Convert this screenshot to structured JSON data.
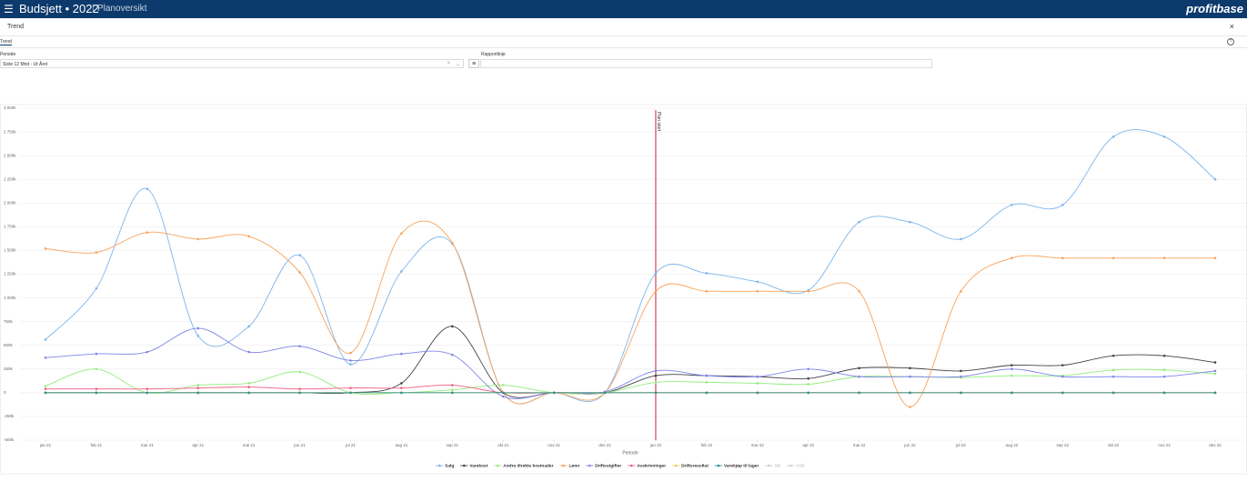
{
  "header": {
    "title": "Budsjett • 2022",
    "subtitle": "Planoversikt",
    "logo": "profitbase"
  },
  "panel": {
    "title": "Trend",
    "tab": "Trend"
  },
  "filters": {
    "period_label": "Periode",
    "period_value": "Siste 12 Mnd - Ut Året",
    "report_label": "Rapportlinje"
  },
  "chart_data": {
    "type": "line",
    "smooth": true,
    "markers": true,
    "x_label": "Periode",
    "categories": [
      "jan 21",
      "feb 21",
      "mar 21",
      "apr 21",
      "mai 21",
      "jun 21",
      "jul 21",
      "aug 21",
      "sep 21",
      "okt 21",
      "nov 21",
      "des 21",
      "jan 22",
      "feb 22",
      "mar 22",
      "apr 22",
      "mai 22",
      "jun 22",
      "jul 22",
      "aug 22",
      "sep 22",
      "okt 22",
      "nov 22",
      "des 22"
    ],
    "ylim": [
      -500000,
      3000000
    ],
    "yticks": [
      {
        "value": -500000,
        "label": "-500k"
      },
      {
        "value": -250000,
        "label": "-250k"
      },
      0,
      {
        "value": 250000,
        "label": "250k"
      },
      {
        "value": 500000,
        "label": "500k"
      },
      {
        "value": 750000,
        "label": "750k"
      },
      {
        "value": 1000000,
        "label": "1 000k"
      },
      {
        "value": 1250000,
        "label": "1 250k"
      },
      {
        "value": 1500000,
        "label": "1 500k"
      },
      {
        "value": 1750000,
        "label": "1 750k"
      },
      {
        "value": 2000000,
        "label": "2 000k"
      },
      {
        "value": 2250000,
        "label": "2 250k"
      },
      {
        "value": 2500000,
        "label": "2 500k"
      },
      {
        "value": 2750000,
        "label": "2 750k"
      },
      {
        "value": 3000000,
        "label": "3 000k"
      }
    ],
    "grid": true,
    "legend": "bottom",
    "annotations": [
      {
        "text": "Plan start",
        "x": "jan 22",
        "color": "#d0021b"
      }
    ],
    "series": [
      {
        "name": "Salg",
        "color": "#7cb5ec",
        "values": [
          560000,
          1100000,
          2150000,
          600000,
          700000,
          1450000,
          300000,
          1280000,
          1570000,
          0,
          0,
          0,
          1260000,
          1260000,
          1170000,
          1080000,
          1800000,
          1800000,
          1620000,
          1980000,
          1980000,
          2700000,
          2700000,
          2250000
        ]
      },
      {
        "name": "Varekost",
        "color": "#434348",
        "values": [
          0,
          0,
          0,
          0,
          0,
          0,
          0,
          100000,
          700000,
          0,
          0,
          0,
          180000,
          180000,
          170000,
          150000,
          260000,
          260000,
          230000,
          290000,
          290000,
          390000,
          390000,
          320000
        ]
      },
      {
        "name": "Andre direkte kostnader",
        "color": "#90ed7d",
        "values": [
          70000,
          250000,
          0,
          80000,
          100000,
          220000,
          0,
          0,
          30000,
          80000,
          0,
          0,
          110000,
          110000,
          100000,
          90000,
          170000,
          170000,
          160000,
          180000,
          180000,
          240000,
          240000,
          200000
        ]
      },
      {
        "name": "Lønn",
        "color": "#f7a35c",
        "values": [
          1520000,
          1480000,
          1690000,
          1620000,
          1650000,
          1270000,
          420000,
          1680000,
          1580000,
          0,
          0,
          0,
          1070000,
          1070000,
          1070000,
          1070000,
          1070000,
          -150000,
          1070000,
          1420000,
          1420000,
          1420000,
          1420000,
          1420000
        ]
      },
      {
        "name": "Driftsutgifter",
        "color": "#8085e9",
        "values": [
          370000,
          410000,
          430000,
          680000,
          430000,
          490000,
          340000,
          410000,
          400000,
          -40000,
          0,
          10000,
          230000,
          180000,
          170000,
          250000,
          170000,
          170000,
          170000,
          250000,
          170000,
          170000,
          170000,
          230000
        ]
      },
      {
        "name": "Avskrivninger",
        "color": "#f15c80",
        "values": [
          40000,
          40000,
          40000,
          50000,
          60000,
          40000,
          50000,
          50000,
          80000,
          0,
          0,
          0,
          0,
          0,
          0,
          0,
          0,
          0,
          0,
          0,
          0,
          0,
          0,
          0
        ]
      },
      {
        "name": "Driftsresultat",
        "color": "#e4d354",
        "values": [
          0,
          0,
          0,
          0,
          0,
          0,
          0,
          0,
          0,
          0,
          0,
          0,
          0,
          0,
          0,
          0,
          0,
          0,
          0,
          0,
          0,
          0,
          0,
          0
        ]
      },
      {
        "name": "Varekjøp til lager",
        "color": "#2b908f",
        "values": [
          0,
          0,
          0,
          0,
          0,
          0,
          0,
          0,
          0,
          0,
          0,
          0,
          0,
          0,
          0,
          0,
          0,
          0,
          0,
          0,
          0,
          0,
          0,
          0
        ]
      },
      {
        "name": "SB",
        "color": "#cccccc",
        "visible": false,
        "values": [
          null,
          null,
          null,
          null,
          null,
          null,
          null,
          null,
          null,
          null,
          null,
          null,
          null,
          null,
          null,
          null,
          null,
          null,
          null,
          null,
          null,
          null,
          null,
          null
        ]
      },
      {
        "name": "SSB",
        "color": "#cccccc",
        "visible": false,
        "values": [
          null,
          null,
          null,
          null,
          null,
          null,
          null,
          null,
          null,
          null,
          null,
          null,
          null,
          null,
          null,
          null,
          null,
          null,
          null,
          null,
          null,
          null,
          null,
          null
        ]
      }
    ]
  }
}
